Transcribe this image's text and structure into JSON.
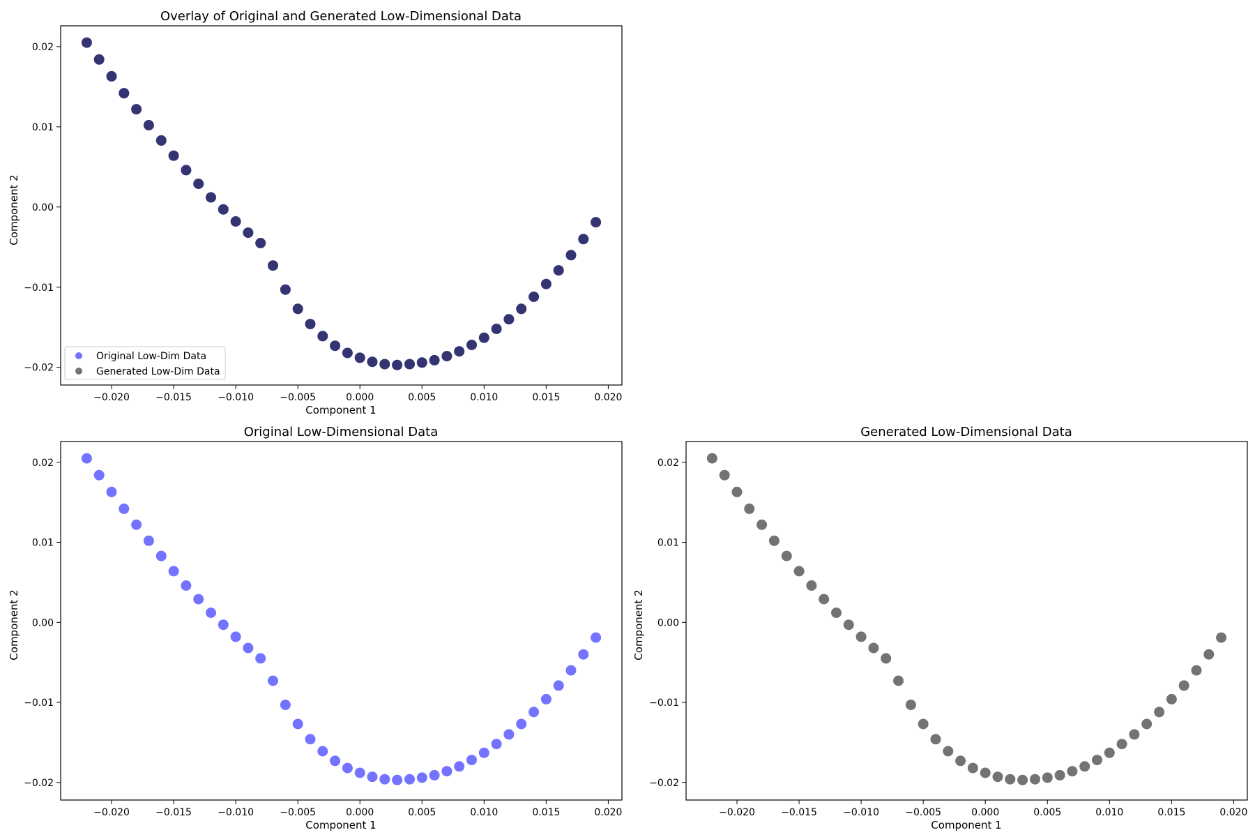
{
  "chart_data": [
    {
      "type": "scatter",
      "title": "Overlay of Original and Generated Low-Dimensional Data",
      "xlabel": "Component 1",
      "ylabel": "Component 2",
      "xlim": [
        -0.0241,
        0.0211
      ],
      "ylim": [
        -0.0222,
        0.0226
      ],
      "xticks": [
        -0.02,
        -0.015,
        -0.01,
        -0.005,
        0.0,
        0.005,
        0.01,
        0.015,
        0.02
      ],
      "xtick_labels": [
        "−0.020",
        "−0.015",
        "−0.010",
        "−0.005",
        "0.000",
        "0.005",
        "0.010",
        "0.015",
        "0.020"
      ],
      "yticks": [
        0.02,
        0.01,
        0.0,
        -0.01,
        -0.02
      ],
      "ytick_labels": [
        "0.02",
        "0.01",
        "0.00",
        "−0.01",
        "−0.02"
      ],
      "legend": "lower-left",
      "grid": false,
      "series": [
        {
          "name": "Original Low-Dim Data",
          "color": "#0000ff",
          "x": [
            -0.022,
            -0.021,
            -0.02,
            -0.019,
            -0.018,
            -0.017,
            -0.016,
            -0.015,
            -0.014,
            -0.013,
            -0.012,
            -0.011,
            -0.01,
            -0.009,
            -0.008,
            -0.007,
            -0.006,
            -0.005,
            -0.004,
            -0.003,
            -0.002,
            -0.001,
            0.0,
            0.001,
            0.002,
            0.003,
            0.004,
            0.005,
            0.006,
            0.007,
            0.008,
            0.009,
            0.01,
            0.011,
            0.012,
            0.013,
            0.014,
            0.015,
            0.016,
            0.017,
            0.018,
            0.019
          ],
          "y": [
            0.0205,
            0.0184,
            0.0163,
            0.0142,
            0.0122,
            0.0102,
            0.0083,
            0.0064,
            0.0046,
            0.0029,
            0.0012,
            -0.0003,
            -0.0018,
            -0.0032,
            -0.0045,
            -0.0073,
            -0.0103,
            -0.0127,
            -0.0146,
            -0.0161,
            -0.0173,
            -0.0182,
            -0.0188,
            -0.0193,
            -0.0196,
            -0.0197,
            -0.0196,
            -0.0194,
            -0.0191,
            -0.0186,
            -0.018,
            -0.0172,
            -0.0163,
            -0.0152,
            -0.014,
            -0.0127,
            -0.0112,
            -0.0096,
            -0.0079,
            -0.006,
            -0.004,
            -0.0019
          ]
        },
        {
          "name": "Generated Low-Dim Data",
          "color": "#000000",
          "x": [
            -0.022,
            -0.021,
            -0.02,
            -0.019,
            -0.018,
            -0.017,
            -0.016,
            -0.015,
            -0.014,
            -0.013,
            -0.012,
            -0.011,
            -0.01,
            -0.009,
            -0.008,
            -0.007,
            -0.006,
            -0.005,
            -0.004,
            -0.003,
            -0.002,
            -0.001,
            0.0,
            0.001,
            0.002,
            0.003,
            0.004,
            0.005,
            0.006,
            0.007,
            0.008,
            0.009,
            0.01,
            0.011,
            0.012,
            0.013,
            0.014,
            0.015,
            0.016,
            0.017,
            0.018,
            0.019
          ],
          "y": [
            0.0205,
            0.0184,
            0.0163,
            0.0142,
            0.0122,
            0.0102,
            0.0083,
            0.0064,
            0.0046,
            0.0029,
            0.0012,
            -0.0003,
            -0.0018,
            -0.0032,
            -0.0045,
            -0.0073,
            -0.0103,
            -0.0127,
            -0.0146,
            -0.0161,
            -0.0173,
            -0.0182,
            -0.0188,
            -0.0193,
            -0.0196,
            -0.0197,
            -0.0196,
            -0.0194,
            -0.0191,
            -0.0186,
            -0.018,
            -0.0172,
            -0.0163,
            -0.0152,
            -0.014,
            -0.0127,
            -0.0112,
            -0.0096,
            -0.0079,
            -0.006,
            -0.004,
            -0.0019
          ]
        }
      ]
    },
    {
      "type": "scatter",
      "title": "Original Low-Dimensional Data",
      "xlabel": "Component 1",
      "ylabel": "Component 2",
      "xlim": [
        -0.0241,
        0.0211
      ],
      "ylim": [
        -0.0222,
        0.0226
      ],
      "xticks": [
        -0.02,
        -0.015,
        -0.01,
        -0.005,
        0.0,
        0.005,
        0.01,
        0.015,
        0.02
      ],
      "xtick_labels": [
        "−0.020",
        "−0.015",
        "−0.010",
        "−0.005",
        "0.000",
        "0.005",
        "0.010",
        "0.015",
        "0.020"
      ],
      "yticks": [
        0.02,
        0.01,
        0.0,
        -0.01,
        -0.02
      ],
      "ytick_labels": [
        "0.02",
        "0.01",
        "0.00",
        "−0.01",
        "−0.02"
      ],
      "grid": false,
      "series": [
        {
          "color": "#0000ff",
          "x": [
            -0.022,
            -0.021,
            -0.02,
            -0.019,
            -0.018,
            -0.017,
            -0.016,
            -0.015,
            -0.014,
            -0.013,
            -0.012,
            -0.011,
            -0.01,
            -0.009,
            -0.008,
            -0.007,
            -0.006,
            -0.005,
            -0.004,
            -0.003,
            -0.002,
            -0.001,
            0.0,
            0.001,
            0.002,
            0.003,
            0.004,
            0.005,
            0.006,
            0.007,
            0.008,
            0.009,
            0.01,
            0.011,
            0.012,
            0.013,
            0.014,
            0.015,
            0.016,
            0.017,
            0.018,
            0.019
          ],
          "y": [
            0.0205,
            0.0184,
            0.0163,
            0.0142,
            0.0122,
            0.0102,
            0.0083,
            0.0064,
            0.0046,
            0.0029,
            0.0012,
            -0.0003,
            -0.0018,
            -0.0032,
            -0.0045,
            -0.0073,
            -0.0103,
            -0.0127,
            -0.0146,
            -0.0161,
            -0.0173,
            -0.0182,
            -0.0188,
            -0.0193,
            -0.0196,
            -0.0197,
            -0.0196,
            -0.0194,
            -0.0191,
            -0.0186,
            -0.018,
            -0.0172,
            -0.0163,
            -0.0152,
            -0.014,
            -0.0127,
            -0.0112,
            -0.0096,
            -0.0079,
            -0.006,
            -0.004,
            -0.0019
          ]
        }
      ]
    },
    {
      "type": "scatter",
      "title": "Generated Low-Dimensional Data",
      "xlabel": "Component 1",
      "ylabel": "Component 2",
      "xlim": [
        -0.0241,
        0.0211
      ],
      "ylim": [
        -0.0222,
        0.0226
      ],
      "xticks": [
        -0.02,
        -0.015,
        -0.01,
        -0.005,
        0.0,
        0.005,
        0.01,
        0.015,
        0.02
      ],
      "xtick_labels": [
        "−0.020",
        "−0.015",
        "−0.010",
        "−0.005",
        "0.000",
        "0.005",
        "0.010",
        "0.015",
        "0.020"
      ],
      "yticks": [
        0.02,
        0.01,
        0.0,
        -0.01,
        -0.02
      ],
      "ytick_labels": [
        "0.02",
        "0.01",
        "0.00",
        "−0.01",
        "−0.02"
      ],
      "grid": false,
      "series": [
        {
          "color": "#000000",
          "x": [
            -0.022,
            -0.021,
            -0.02,
            -0.019,
            -0.018,
            -0.017,
            -0.016,
            -0.015,
            -0.014,
            -0.013,
            -0.012,
            -0.011,
            -0.01,
            -0.009,
            -0.008,
            -0.007,
            -0.006,
            -0.005,
            -0.004,
            -0.003,
            -0.002,
            -0.001,
            0.0,
            0.001,
            0.002,
            0.003,
            0.004,
            0.005,
            0.006,
            0.007,
            0.008,
            0.009,
            0.01,
            0.011,
            0.012,
            0.013,
            0.014,
            0.015,
            0.016,
            0.017,
            0.018,
            0.019
          ],
          "y": [
            0.0205,
            0.0184,
            0.0163,
            0.0142,
            0.0122,
            0.0102,
            0.0083,
            0.0064,
            0.0046,
            0.0029,
            0.0012,
            -0.0003,
            -0.0018,
            -0.0032,
            -0.0045,
            -0.0073,
            -0.0103,
            -0.0127,
            -0.0146,
            -0.0161,
            -0.0173,
            -0.0182,
            -0.0188,
            -0.0193,
            -0.0196,
            -0.0197,
            -0.0196,
            -0.0194,
            -0.0191,
            -0.0186,
            -0.018,
            -0.0172,
            -0.0163,
            -0.0152,
            -0.014,
            -0.0127,
            -0.0112,
            -0.0096,
            -0.0079,
            -0.006,
            -0.004,
            -0.0019
          ]
        }
      ]
    }
  ]
}
